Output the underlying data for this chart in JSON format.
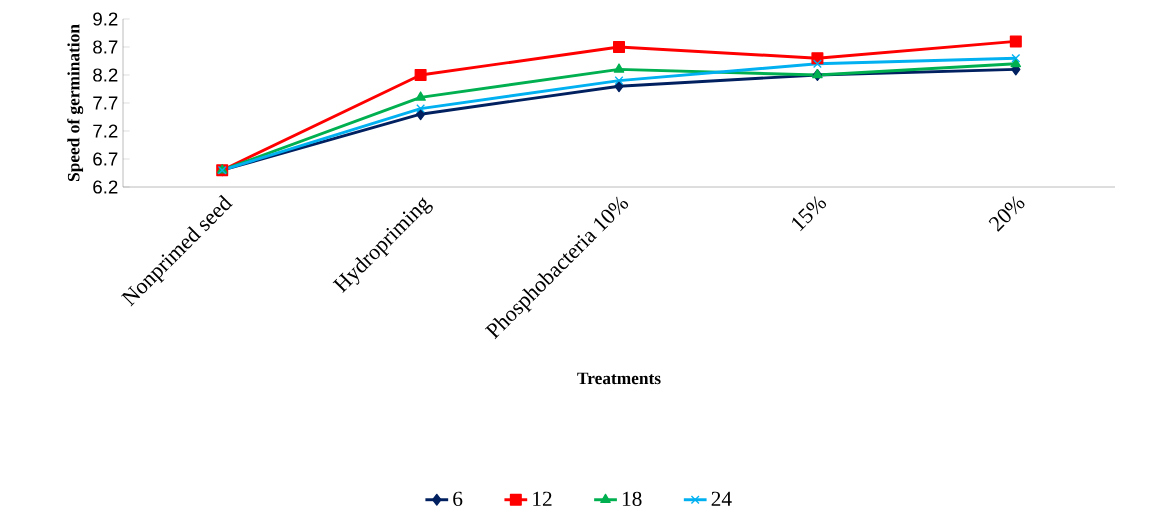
{
  "chart_data": {
    "type": "line",
    "xlabel": "Treatments",
    "ylabel": "Speed of germination",
    "categories": [
      "Nonprimed seed",
      "Hydropriming",
      "Phosphobacteria 10%",
      "15%",
      "20%"
    ],
    "ylim": [
      6.2,
      9.2
    ],
    "yticks": [
      6.2,
      6.7,
      7.2,
      7.7,
      8.2,
      8.7,
      9.2
    ],
    "legend": "bottom",
    "grid": false,
    "line_style": "solid",
    "series": [
      {
        "name": "6",
        "color": "#002060",
        "marker": "diamond",
        "values": [
          6.5,
          7.5,
          8.0,
          8.2,
          8.3
        ]
      },
      {
        "name": "12",
        "color": "#ff0000",
        "marker": "square",
        "values": [
          6.5,
          8.2,
          8.7,
          8.5,
          8.8
        ]
      },
      {
        "name": "18",
        "color": "#00b050",
        "marker": "triangle",
        "values": [
          6.5,
          7.8,
          8.3,
          8.2,
          8.4
        ]
      },
      {
        "name": "24",
        "color": "#00b0f0",
        "marker": "cross",
        "values": [
          6.5,
          7.6,
          8.1,
          8.4,
          8.5
        ]
      }
    ]
  }
}
